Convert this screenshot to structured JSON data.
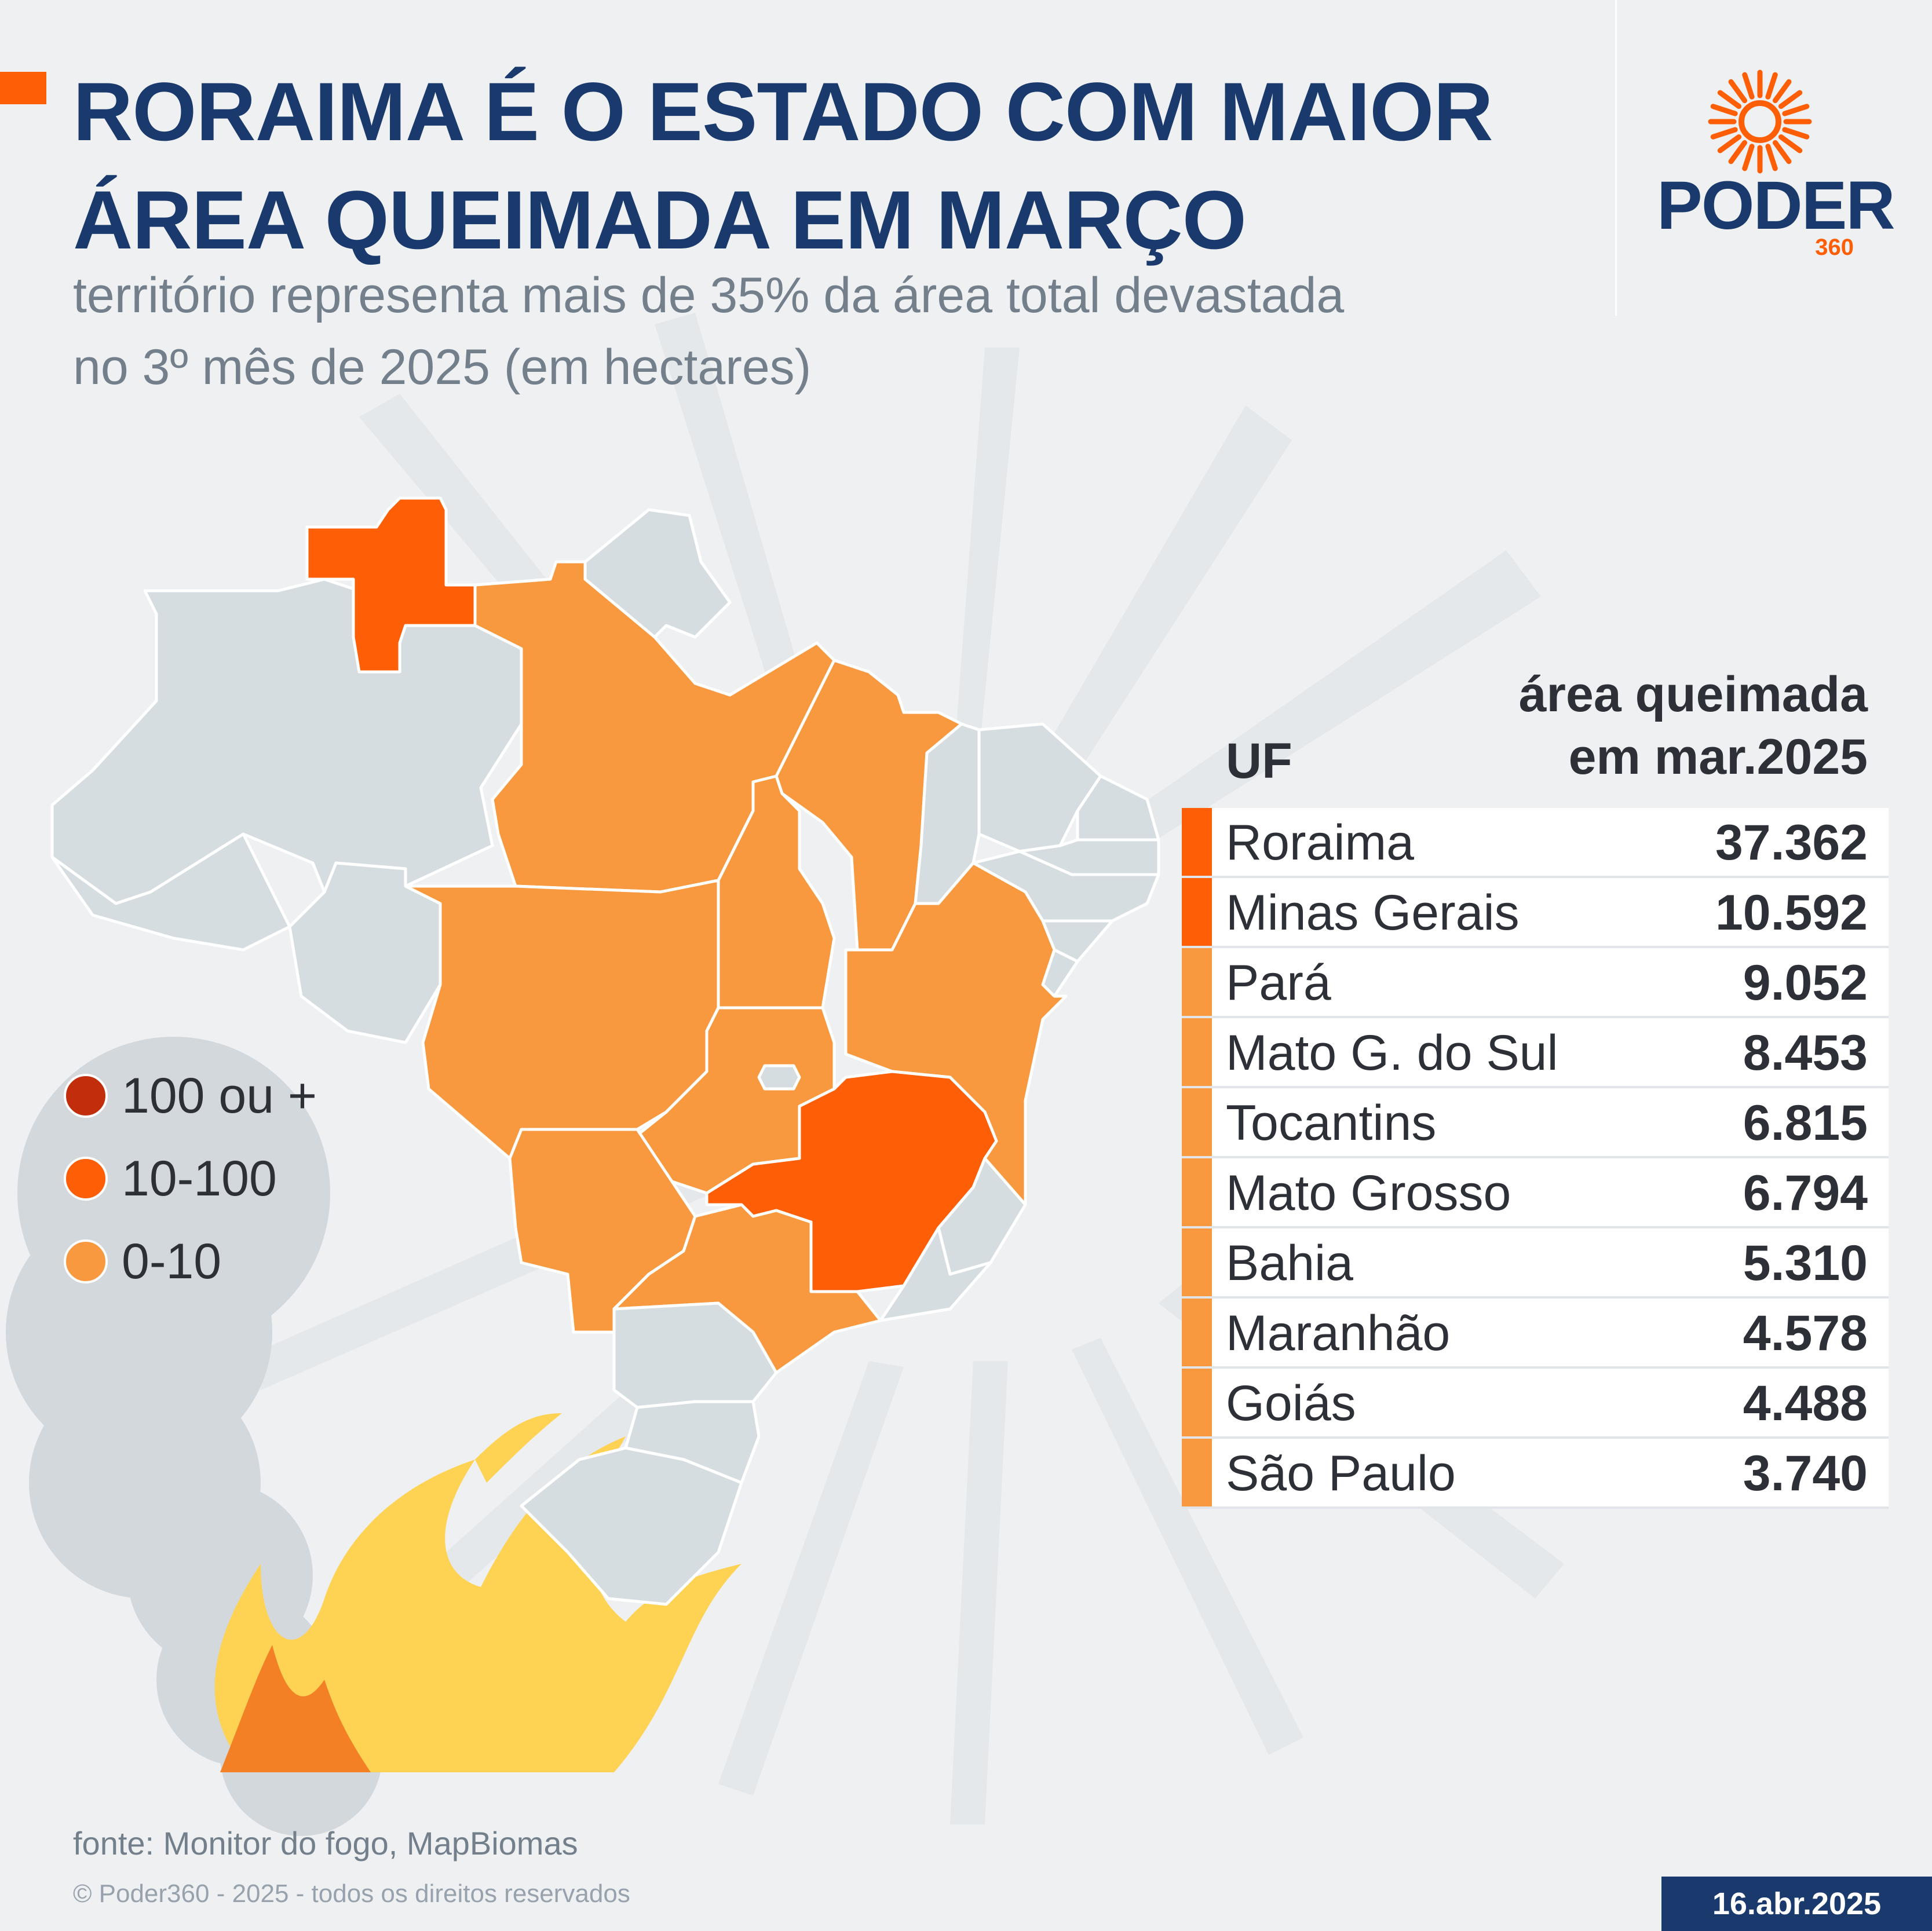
{
  "header": {
    "title_line1": "RORAIMA É O ESTADO COM MAIOR",
    "title_line2": "ÁREA QUEIMADA EM MARÇO",
    "subtitle_line1": "território representa mais de 35% da área total devastada",
    "subtitle_line2": "no 3º mês de 2025 (em hectares)"
  },
  "logo": {
    "word": "PODER",
    "number": "360"
  },
  "legend": [
    {
      "label": "100 ou +",
      "color": "#c22e0b"
    },
    {
      "label": "10-100",
      "color": "#fe5e06"
    },
    {
      "label": "0-10",
      "color": "#f8993f"
    }
  ],
  "colors": {
    "title": "#1a3a6d",
    "accent": "#fe5e06",
    "light_orange": "#f8993f",
    "dark_red": "#c22e0b",
    "no_data_state": "#d6dde1"
  },
  "table": {
    "header_uf": "UF",
    "header_value_line1": "área queimada",
    "header_value_line2": "em mar.2025"
  },
  "chart_data": {
    "type": "table",
    "title": "RORAIMA É O ESTADO COM MAIOR ÁREA QUEIMADA EM MARÇO",
    "subtitle": "território representa mais de 35% da área total devastada no 3º mês de 2025 (em hectares)",
    "columns": [
      "UF",
      "área queimada em mar.2025"
    ],
    "rows": [
      {
        "uf": "Roraima",
        "value": 37362,
        "value_label": "37.362",
        "color": "#fe5e06"
      },
      {
        "uf": "Minas Gerais",
        "value": 10592,
        "value_label": "10.592",
        "color": "#fe5e06"
      },
      {
        "uf": "Pará",
        "value": 9052,
        "value_label": "9.052",
        "color": "#f8993f"
      },
      {
        "uf": "Mato G. do Sul",
        "value": 8453,
        "value_label": "8.453",
        "color": "#f8993f"
      },
      {
        "uf": "Tocantins",
        "value": 6815,
        "value_label": "6.815",
        "color": "#f8993f"
      },
      {
        "uf": "Mato Grosso",
        "value": 6794,
        "value_label": "6.794",
        "color": "#f8993f"
      },
      {
        "uf": "Bahia",
        "value": 5310,
        "value_label": "5.310",
        "color": "#f8993f"
      },
      {
        "uf": "Maranhão",
        "value": 4578,
        "value_label": "4.578",
        "color": "#f8993f"
      },
      {
        "uf": "Goiás",
        "value": 4488,
        "value_label": "4.488",
        "color": "#f8993f"
      },
      {
        "uf": "São Paulo",
        "value": 3740,
        "value_label": "3.740",
        "color": "#f8993f"
      }
    ]
  },
  "map": {
    "state_classes": [
      {
        "state": "Roraima",
        "class": "10-100"
      },
      {
        "state": "Minas Gerais",
        "class": "10-100"
      },
      {
        "state": "Pará",
        "class": "0-10"
      },
      {
        "state": "Mato Grosso do Sul",
        "class": "0-10"
      },
      {
        "state": "Tocantins",
        "class": "0-10"
      },
      {
        "state": "Mato Grosso",
        "class": "0-10"
      },
      {
        "state": "Bahia",
        "class": "0-10"
      },
      {
        "state": "Maranhão",
        "class": "0-10"
      },
      {
        "state": "Goiás",
        "class": "0-10"
      },
      {
        "state": "São Paulo",
        "class": "0-10"
      }
    ]
  },
  "footer": {
    "source": "fonte: Monitor do fogo, MapBiomas",
    "copyright": "© Poder360 - 2025 - todos os direitos reservados",
    "date": "16.abr.2025"
  }
}
